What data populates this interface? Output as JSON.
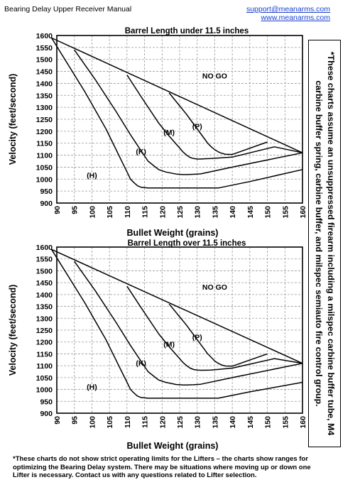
{
  "header": {
    "doc_title": "Bearing Delay Upper Receiver Manual",
    "email": "support@meanarms.com",
    "website": "www.meanarms.com"
  },
  "side_note": "*These charts assume an unsuppressed firearm including a milspec carbine buffer tube, M4 carbine buffer spring, carbine buffer, and milspec semiauto fire control group.",
  "footnote": "*These charts do not show strict operating limits for the Lifters – the charts show ranges for optimizing the Bearing Delay system. There may be situations where moving up or down one Lifter is necessary. Contact us with any questions related to Lifter selection.",
  "chart_data": [
    {
      "type": "line",
      "title": "Barrel Length under 11.5 inches",
      "xlabel": "Bullet Weight (grains)",
      "ylabel": "Velocity (feet/second)",
      "xlim": [
        90,
        160
      ],
      "ylim": [
        900,
        1600
      ],
      "x_ticks": [
        "90",
        "95",
        "100",
        "105",
        "110",
        "115",
        "120",
        "125",
        "130",
        "135",
        "140",
        "145",
        "150",
        "155",
        "160"
      ],
      "y_ticks": [
        "1600",
        "1550",
        "1500",
        "1450",
        "1400",
        "1350",
        "1300",
        "1250",
        "1200",
        "1150",
        "1100",
        "1050",
        "1000",
        "950",
        "900"
      ],
      "grid": true,
      "boundary": {
        "x": [
          88.5,
          160
        ],
        "y": [
          1590,
          1110
        ]
      },
      "region_labels": [
        {
          "text": "NO GO",
          "x": 135,
          "y": 1420
        },
        {
          "text": "(P)",
          "x": 130,
          "y": 1210
        },
        {
          "text": "(M)",
          "x": 122,
          "y": 1185
        },
        {
          "text": "(K)",
          "x": 114,
          "y": 1105
        },
        {
          "text": "(H)",
          "x": 100,
          "y": 1005
        }
      ],
      "series": [
        {
          "name": "H",
          "x": [
            88.5,
            98,
            104,
            109,
            110,
            111,
            112,
            113,
            114,
            116,
            130,
            136,
            145,
            160
          ],
          "y": [
            1590,
            1365,
            1210,
            1060,
            1030,
            1000,
            985,
            972,
            966,
            963,
            963,
            963,
            990,
            1040
          ]
        },
        {
          "name": "K",
          "x": [
            95,
            101,
            107,
            111,
            116,
            119,
            121,
            123,
            124,
            125,
            126,
            127,
            129,
            131,
            140,
            160
          ],
          "y": [
            1540,
            1415,
            1280,
            1185,
            1075,
            1040,
            1030,
            1024,
            1021,
            1020,
            1019,
            1019,
            1020,
            1022,
            1050,
            1110
          ]
        },
        {
          "name": "M",
          "x": [
            110,
            114,
            119,
            122,
            125,
            126,
            127,
            128,
            129,
            130,
            131,
            132,
            134,
            140,
            152,
            160
          ],
          "y": [
            1435,
            1345,
            1235,
            1180,
            1130,
            1113,
            1100,
            1090,
            1086,
            1084,
            1084,
            1085,
            1086,
            1092,
            1135,
            1110
          ]
        },
        {
          "name": "P",
          "x": [
            122,
            127,
            130,
            132,
            133,
            134,
            135,
            136,
            137,
            138,
            140,
            150
          ],
          "y": [
            1360,
            1270,
            1210,
            1170,
            1150,
            1135,
            1123,
            1114,
            1108,
            1104,
            1103,
            1155
          ]
        }
      ]
    },
    {
      "type": "line",
      "title": "Barrel Length over 11.5 inches",
      "xlabel": "Bullet Weight (grains)",
      "ylabel": "Velocity (feet/second)",
      "xlim": [
        90,
        160
      ],
      "ylim": [
        900,
        1600
      ],
      "x_ticks": [
        "90",
        "95",
        "100",
        "105",
        "110",
        "115",
        "120",
        "125",
        "130",
        "135",
        "140",
        "145",
        "150",
        "155",
        "160"
      ],
      "y_ticks": [
        "1600",
        "1550",
        "1500",
        "1450",
        "1400",
        "1350",
        "1300",
        "1250",
        "1200",
        "1150",
        "1100",
        "1050",
        "1000",
        "950",
        "900"
      ],
      "grid": true,
      "boundary": {
        "x": [
          88.5,
          160
        ],
        "y": [
          1590,
          1110
        ]
      },
      "region_labels": [
        {
          "text": "NO GO",
          "x": 135,
          "y": 1420
        },
        {
          "text": "(P)",
          "x": 130,
          "y": 1210
        },
        {
          "text": "(M)",
          "x": 122,
          "y": 1180
        },
        {
          "text": "(K)",
          "x": 114,
          "y": 1100
        },
        {
          "text": "(H)",
          "x": 100,
          "y": 1000
        }
      ],
      "series": [
        {
          "name": "H",
          "x": [
            88.5,
            98,
            104,
            109,
            110,
            111,
            112,
            113,
            114,
            116,
            130,
            136,
            145,
            160
          ],
          "y": [
            1590,
            1365,
            1210,
            1060,
            1030,
            1000,
            985,
            972,
            966,
            963,
            963,
            963,
            990,
            1030
          ]
        },
        {
          "name": "K",
          "x": [
            95,
            101,
            107,
            111,
            116,
            119,
            121,
            123,
            124,
            125,
            126,
            127,
            129,
            131,
            140,
            160
          ],
          "y": [
            1540,
            1415,
            1280,
            1185,
            1075,
            1040,
            1030,
            1024,
            1021,
            1020,
            1019,
            1019,
            1020,
            1022,
            1050,
            1110
          ]
        },
        {
          "name": "M",
          "x": [
            110,
            114,
            119,
            122,
            125,
            126,
            127,
            128,
            129,
            130,
            131,
            132,
            134,
            140,
            152,
            160
          ],
          "y": [
            1435,
            1345,
            1235,
            1180,
            1130,
            1113,
            1100,
            1090,
            1084,
            1082,
            1081,
            1081,
            1082,
            1090,
            1130,
            1110
          ]
        },
        {
          "name": "P",
          "x": [
            122,
            127,
            130,
            132,
            133,
            134,
            135,
            136,
            137,
            138,
            140,
            150
          ],
          "y": [
            1360,
            1270,
            1210,
            1170,
            1150,
            1135,
            1120,
            1110,
            1103,
            1099,
            1098,
            1150
          ]
        }
      ]
    }
  ]
}
